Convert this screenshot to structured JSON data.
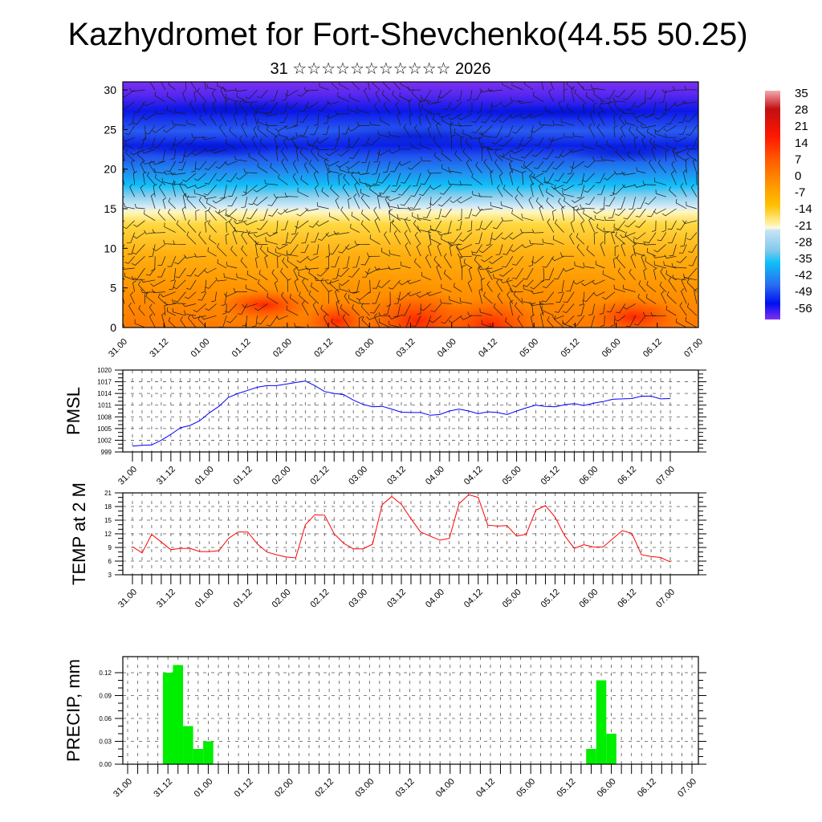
{
  "header": {
    "title": "Kazhydromet for Fort-Shevchenko(44.55 50.25)",
    "subtitle": "31 ☆☆☆☆☆☆☆☆☆☆☆ 2026"
  },
  "time_labels": [
    "31.00",
    "31.12",
    "01.00",
    "01.12",
    "02.00",
    "02.12",
    "03.00",
    "03.12",
    "04.00",
    "04.12",
    "05.00",
    "05.12",
    "06.00",
    "06.12",
    "07.00"
  ],
  "chart_data": [
    {
      "type": "heatmap",
      "name": "temperature-wind cross-section",
      "x_tick_labels": [
        "31.00",
        "31.12",
        "01.00",
        "01.12",
        "02.00",
        "02.12",
        "03.00",
        "03.12",
        "04.00",
        "04.12",
        "05.00",
        "05.12",
        "06.00",
        "06.12",
        "07.00"
      ],
      "y_tick_labels": [
        "0",
        "5",
        "10",
        "15",
        "20",
        "25",
        "30"
      ],
      "ylim": [
        0,
        31
      ],
      "colorbar": {
        "labels": [
          "35",
          "28",
          "21",
          "14",
          "7",
          "0",
          "-7",
          "-14",
          "-21",
          "-28",
          "-35",
          "-42",
          "-49",
          "-56"
        ],
        "colors": [
          "#f4a0a8",
          "#c01010",
          "#ff2000",
          "#ff5a00",
          "#ff9000",
          "#ffb000",
          "#ffe040",
          "#fffbd0",
          "#c8e4f4",
          "#80c8ec",
          "#10c0f8",
          "#2080f0",
          "#2858e8",
          "#0010f0",
          "#7a28f0"
        ]
      },
      "overlay": "wind barbs"
    },
    {
      "type": "line",
      "ylabel": "PMSL",
      "ylim": [
        999,
        1020
      ],
      "y_tick_labels": [
        "999",
        "1002",
        "1005",
        "1008",
        "1011",
        "1014",
        "1017",
        "1020"
      ],
      "x_step_hours": 3,
      "color": "#0000ff",
      "values": [
        1000.5,
        1000.7,
        1000.8,
        1002,
        1003.5,
        1005.2,
        1005.8,
        1007,
        1009,
        1010.7,
        1013,
        1014,
        1014.8,
        1015.6,
        1016,
        1016,
        1016.4,
        1016.8,
        1017.2,
        1016,
        1014.5,
        1014,
        1013.7,
        1012.3,
        1011.2,
        1010.6,
        1010.7,
        1010,
        1009.2,
        1009.1,
        1009.1,
        1008.4,
        1008.6,
        1009.5,
        1010,
        1009.5,
        1008.8,
        1009.3,
        1009.1,
        1008.6,
        1009.5,
        1010.3,
        1011,
        1010.7,
        1010.6,
        1011.1,
        1011.4,
        1010.9,
        1011.5,
        1011.9,
        1012.5,
        1012.6,
        1012.7,
        1013.3,
        1013.3,
        1012.6,
        1012.7
      ]
    },
    {
      "type": "line",
      "ylabel": "TEMP at 2 M",
      "ylim": [
        3,
        21
      ],
      "y_tick_labels": [
        "3",
        "6",
        "9",
        "12",
        "15",
        "18",
        "21"
      ],
      "x_step_hours": 3,
      "color": "#ff0000",
      "values": [
        9.2,
        7.8,
        11.9,
        10.2,
        8.5,
        8.8,
        8.8,
        8.1,
        8.1,
        8.3,
        11,
        12.4,
        12.4,
        9.8,
        8,
        7.4,
        6.9,
        6.7,
        14,
        16.2,
        16.1,
        12,
        9.9,
        8.7,
        8.7,
        9.7,
        18.4,
        20.2,
        18.5,
        15.3,
        12.4,
        11.5,
        10.6,
        11,
        18.6,
        20.6,
        20,
        13.9,
        13.7,
        13.8,
        11.5,
        11.9,
        17.2,
        18.2,
        15.7,
        11.6,
        8.8,
        9.6,
        9.1,
        9.1,
        10.9,
        12.7,
        12.1,
        7.4,
        7,
        6.8,
        5.8
      ]
    },
    {
      "type": "bar",
      "ylabel": "PRECIP, mm",
      "ylim": [
        0,
        0.14
      ],
      "y_tick_labels": [
        "0.00",
        "0.03",
        "0.06",
        "0.09",
        "0.12"
      ],
      "x_step_hours": 3,
      "color": "#00ee00",
      "bars": [
        {
          "index": 4,
          "value": 0.12
        },
        {
          "index": 5,
          "value": 0.13
        },
        {
          "index": 6,
          "value": 0.05
        },
        {
          "index": 7,
          "value": 0.02
        },
        {
          "index": 8,
          "value": 0.03
        },
        {
          "index": 46,
          "value": 0.02
        },
        {
          "index": 47,
          "value": 0.11
        },
        {
          "index": 48,
          "value": 0.04
        }
      ]
    }
  ]
}
